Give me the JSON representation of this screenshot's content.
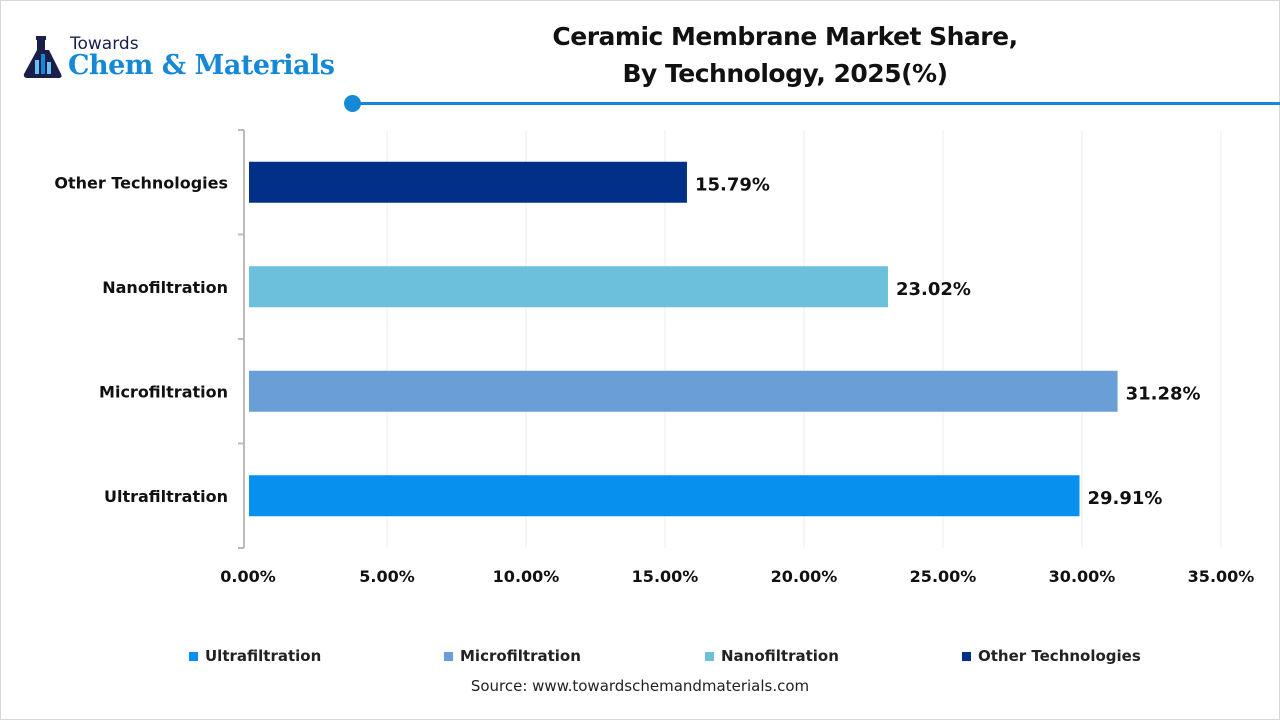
{
  "logo": {
    "line1": "Towards",
    "line2": "Chem & Materials"
  },
  "chart_data": {
    "type": "bar",
    "orientation": "horizontal",
    "title": "Ceramic Membrane Market Share,\nBy Technology, 2025(%)",
    "title_lines": [
      "Ceramic Membrane Market Share,",
      "By Technology, 2025(%)"
    ],
    "categories": [
      "Ultrafiltration",
      "Microfiltration",
      "Nanofiltration",
      "Other Technologies"
    ],
    "values": [
      29.91,
      31.28,
      23.02,
      15.79
    ],
    "data_labels": [
      "29.91%",
      "31.28%",
      "23.02%",
      "15.79%"
    ],
    "colors": [
      "#0791ee",
      "#6a9ed6",
      "#6cc0dc",
      "#023089"
    ],
    "xlim": [
      0,
      35
    ],
    "xticks": [
      "0.00%",
      "5.00%",
      "10.00%",
      "15.00%",
      "20.00%",
      "25.00%",
      "30.00%",
      "35.00%"
    ],
    "grid": true,
    "legend": [
      "Ultrafiltration",
      "Microfiltration",
      "Nanofiltration",
      "Other Technologies"
    ],
    "legend_position": "bottom",
    "xlabel": "",
    "ylabel": ""
  },
  "source": "Source: www.towardschemandmaterials.com"
}
